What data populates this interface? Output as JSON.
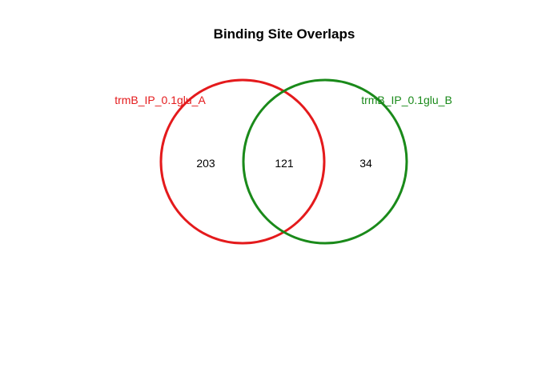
{
  "title": "Binding Site Overlaps",
  "sets": [
    {
      "label": "trmB_IP_0.1glu_A",
      "color": "#e41a1c"
    },
    {
      "label": "trmB_IP_0.1glu_B",
      "color": "#1a8a1a"
    }
  ],
  "counts": {
    "a_only": "203",
    "both": "121",
    "b_only": "34"
  },
  "background": "#ffffff"
}
